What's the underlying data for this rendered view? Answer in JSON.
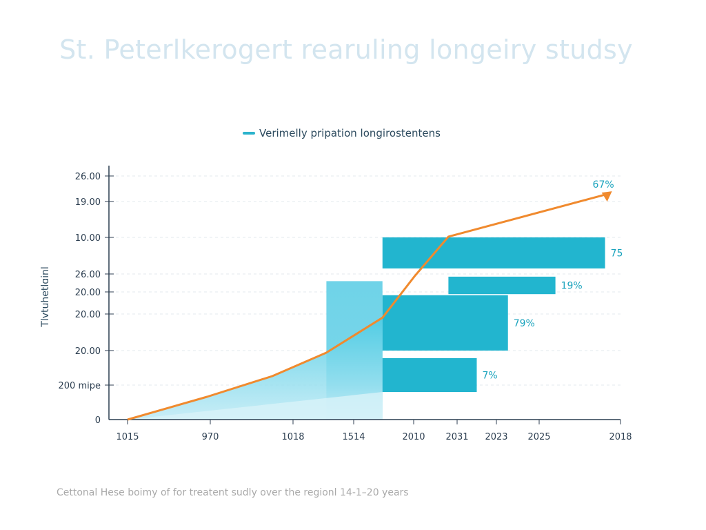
{
  "chart_data": {
    "type": "bar",
    "title": "St. Peterlkerogert rearuling longeiry studsy",
    "ylabel": "Tlvtuhetlɑinl",
    "caption": "Cettonal Hese boimy of for treatent sudly over the regionl 14-1–20 years",
    "legend": {
      "label": "Verimelly pripation longirostentens",
      "position": "top-center"
    },
    "x_ticks": [
      "1015",
      "970",
      "1018",
      "1514",
      "2010",
      "2031",
      "2023",
      "2025",
      "2018"
    ],
    "y_ticks": [
      "0",
      "200 mipe",
      "20.00",
      "20.00",
      "20.00",
      "26.00",
      "10.00",
      "19.00",
      "26.00"
    ],
    "grid": true,
    "line": {
      "color": "#f08a2e",
      "end_label": "67%",
      "points": [
        [
          0,
          0
        ],
        [
          0.96,
          0.66
        ],
        [
          1.75,
          1.26
        ],
        [
          2.55,
          1.94
        ],
        [
          3.48,
          2.9
        ],
        [
          4.03,
          4.9
        ],
        [
          4.8,
          6.02
        ],
        [
          7.87,
          7.32
        ]
      ]
    },
    "column": {
      "x": [
        2.55,
        3.48
      ],
      "top": 4.6,
      "color": "#6fd3e8"
    },
    "bars": [
      {
        "label": "75",
        "start": 3.48,
        "end": 7.81,
        "top": 6.0,
        "bottom": 5.15
      },
      {
        "label": "19%",
        "start": 4.8,
        "end": 7.2,
        "top": 4.85,
        "bottom": 3.9
      },
      {
        "label": "79%",
        "start": 3.48,
        "end": 6.27,
        "top": 3.85,
        "bottom": 2.0
      },
      {
        "label": "7%",
        "start": 3.48,
        "end": 5.5,
        "top": 1.78,
        "bottom": 0.8
      }
    ],
    "bar_color": "#22b5cf",
    "label_color": "#1aa3bd"
  }
}
